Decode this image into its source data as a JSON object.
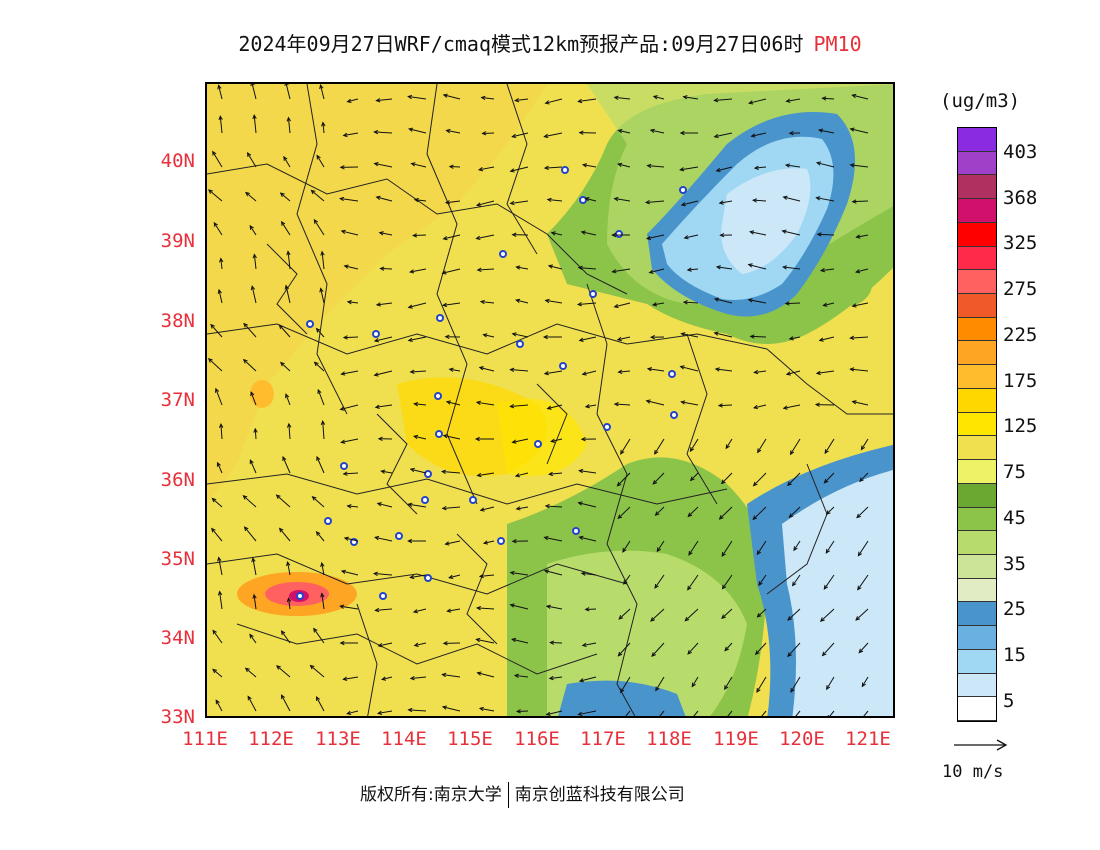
{
  "header": {
    "title": "2024年09月27日WRF/cmaq模式12km预报产品:09月27日06时",
    "variable": "PM10"
  },
  "map": {
    "lat_labels": [
      "40N",
      "39N",
      "38N",
      "37N",
      "36N",
      "35N",
      "34N",
      "33N"
    ],
    "lon_labels": [
      "111E",
      "112E",
      "113E",
      "114E",
      "115E",
      "116E",
      "117E",
      "118E",
      "119E",
      "120E",
      "121E"
    ],
    "lat_range": [
      33,
      41
    ],
    "lon_range": [
      111,
      121.4
    ]
  },
  "legend": {
    "unit": "(ug/m3)",
    "labels": [
      "403",
      "368",
      "325",
      "275",
      "225",
      "175",
      "125",
      "75",
      "45",
      "35",
      "25",
      "15",
      "5"
    ],
    "colors": [
      "#8a2be2",
      "#a040c8",
      "#b03060",
      "#d0106a",
      "#ff0000",
      "#ff2a4a",
      "#ff6060",
      "#f05a28",
      "#ff8c00",
      "#ffa524",
      "#ffbd2e",
      "#ffd700",
      "#ffe600",
      "#f0e050",
      "#eef266",
      "#6aa832",
      "#8cc44a",
      "#b8dc6c",
      "#cce498",
      "#e2ecc4",
      "#4a94cc",
      "#6ab0e0",
      "#a0d8f4",
      "#cce8f8",
      "#ffffff"
    ]
  },
  "wind_scale": {
    "label": "10 m/s"
  },
  "footer": {
    "copyright": "版权所有:南京大学",
    "company": "南京创蓝科技有限公司"
  }
}
